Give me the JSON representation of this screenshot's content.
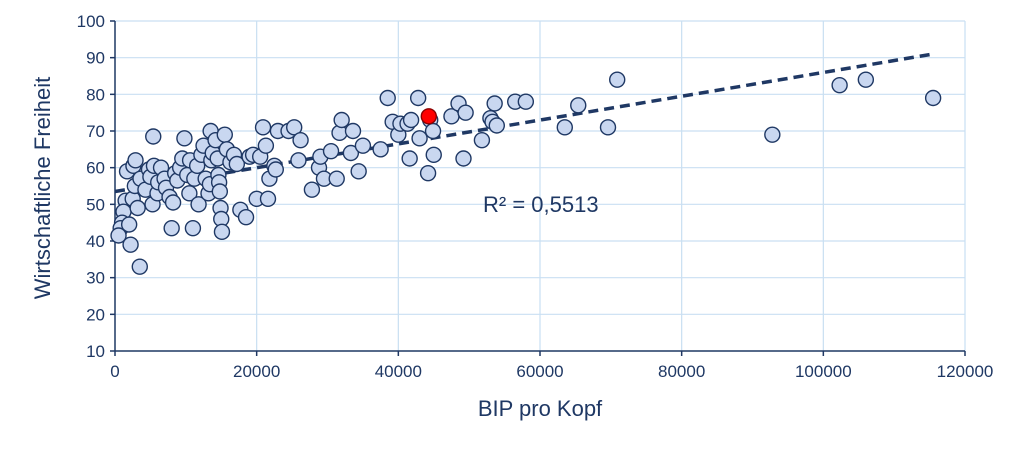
{
  "chart_data": {
    "type": "scatter",
    "title": "",
    "xlabel": "BIP pro Kopf",
    "ylabel": "Wirtschaftliche Freiheit",
    "xlim": [
      0,
      120000
    ],
    "ylim": [
      10,
      100
    ],
    "xticks": [
      0,
      20000,
      40000,
      60000,
      80000,
      100000,
      120000
    ],
    "yticks": [
      10,
      20,
      30,
      40,
      50,
      60,
      70,
      80,
      90,
      100
    ],
    "grid": true,
    "legend": "none",
    "colors": {
      "point_fill": "#c9d7f0",
      "point_stroke": "#1f3864",
      "highlight_fill": "#ff0000",
      "highlight_stroke": "#8b0000",
      "trendline": "#1f3864",
      "grid": "#c9dff2",
      "text": "#1f3864"
    },
    "annotation": "R² = 0,5513",
    "trendline": {
      "style": "dashed",
      "x": [
        0,
        115500
      ],
      "y": [
        53.5,
        91
      ]
    },
    "series": [
      {
        "points": [
          [
            1700,
            59
          ],
          [
            1500,
            51
          ],
          [
            1200,
            48
          ],
          [
            1000,
            45
          ],
          [
            800,
            43.5
          ],
          [
            500,
            41.5
          ],
          [
            2000,
            44.5
          ],
          [
            2200,
            39
          ],
          [
            3500,
            33
          ],
          [
            2500,
            51.5
          ],
          [
            2800,
            55
          ],
          [
            2600,
            60.5
          ],
          [
            2900,
            62
          ],
          [
            3600,
            57
          ],
          [
            3200,
            49
          ],
          [
            4300,
            54
          ],
          [
            4800,
            59.5
          ],
          [
            5000,
            57.5
          ],
          [
            5500,
            60.5
          ],
          [
            5400,
            68.5
          ],
          [
            5300,
            50
          ],
          [
            6000,
            53
          ],
          [
            6100,
            56
          ],
          [
            6500,
            60
          ],
          [
            7000,
            57
          ],
          [
            7200,
            54.5
          ],
          [
            7700,
            52
          ],
          [
            8200,
            50.5
          ],
          [
            8500,
            58.5
          ],
          [
            8000,
            43.5
          ],
          [
            8800,
            56.5
          ],
          [
            9200,
            60
          ],
          [
            9500,
            62.5
          ],
          [
            9800,
            68
          ],
          [
            10200,
            58
          ],
          [
            10600,
            62
          ],
          [
            10500,
            53
          ],
          [
            11000,
            43.5
          ],
          [
            11200,
            57
          ],
          [
            11600,
            60.5
          ],
          [
            11800,
            50
          ],
          [
            12200,
            63.5
          ],
          [
            12500,
            66
          ],
          [
            12800,
            57
          ],
          [
            13200,
            53
          ],
          [
            13400,
            55.5
          ],
          [
            13600,
            62
          ],
          [
            13800,
            64
          ],
          [
            13500,
            70
          ],
          [
            14200,
            67.5
          ],
          [
            14500,
            62.5
          ],
          [
            14600,
            58
          ],
          [
            14700,
            56
          ],
          [
            14800,
            53.5
          ],
          [
            14900,
            49
          ],
          [
            15000,
            46
          ],
          [
            15100,
            42.5
          ],
          [
            15500,
            69
          ],
          [
            15800,
            65
          ],
          [
            16300,
            61.5
          ],
          [
            16800,
            63.5
          ],
          [
            17200,
            61
          ],
          [
            17700,
            48.5
          ],
          [
            18500,
            46.5
          ],
          [
            19000,
            63
          ],
          [
            19500,
            63.5
          ],
          [
            20000,
            51.5
          ],
          [
            20500,
            63
          ],
          [
            20900,
            71
          ],
          [
            21300,
            66
          ],
          [
            21600,
            51.5
          ],
          [
            21800,
            57
          ],
          [
            22500,
            60.5
          ],
          [
            23000,
            70
          ],
          [
            22700,
            59.5
          ],
          [
            24500,
            70
          ],
          [
            25300,
            71
          ],
          [
            25900,
            62
          ],
          [
            26200,
            67.5
          ],
          [
            27800,
            54
          ],
          [
            28800,
            60
          ],
          [
            29000,
            63
          ],
          [
            29500,
            57
          ],
          [
            30500,
            64.5
          ],
          [
            31300,
            57
          ],
          [
            31700,
            69.5
          ],
          [
            32000,
            73
          ],
          [
            33300,
            64
          ],
          [
            33600,
            70
          ],
          [
            34400,
            59
          ],
          [
            35000,
            66
          ],
          [
            37500,
            65
          ],
          [
            38500,
            79
          ],
          [
            39200,
            72.5
          ],
          [
            40000,
            69
          ],
          [
            40300,
            72
          ],
          [
            41300,
            72
          ],
          [
            41800,
            73
          ],
          [
            41600,
            62.5
          ],
          [
            42800,
            79
          ],
          [
            43000,
            68
          ],
          [
            44200,
            58.5
          ],
          [
            44500,
            73
          ],
          [
            44900,
            70
          ],
          [
            45000,
            63.5
          ],
          [
            47500,
            74
          ],
          [
            48500,
            77.5
          ],
          [
            49200,
            62.5
          ],
          [
            49500,
            75
          ],
          [
            51800,
            67.5
          ],
          [
            53000,
            73.5
          ],
          [
            53300,
            72.5
          ],
          [
            53600,
            77.5
          ],
          [
            53900,
            71.5
          ],
          [
            56500,
            78
          ],
          [
            58000,
            78
          ],
          [
            63500,
            71
          ],
          [
            65400,
            77
          ],
          [
            69600,
            71
          ],
          [
            70900,
            84
          ],
          [
            92800,
            69
          ],
          [
            102300,
            82.5
          ],
          [
            106000,
            84
          ],
          [
            115500,
            79
          ]
        ]
      },
      {
        "highlight": true,
        "points": [
          [
            44300,
            74
          ]
        ]
      }
    ]
  }
}
